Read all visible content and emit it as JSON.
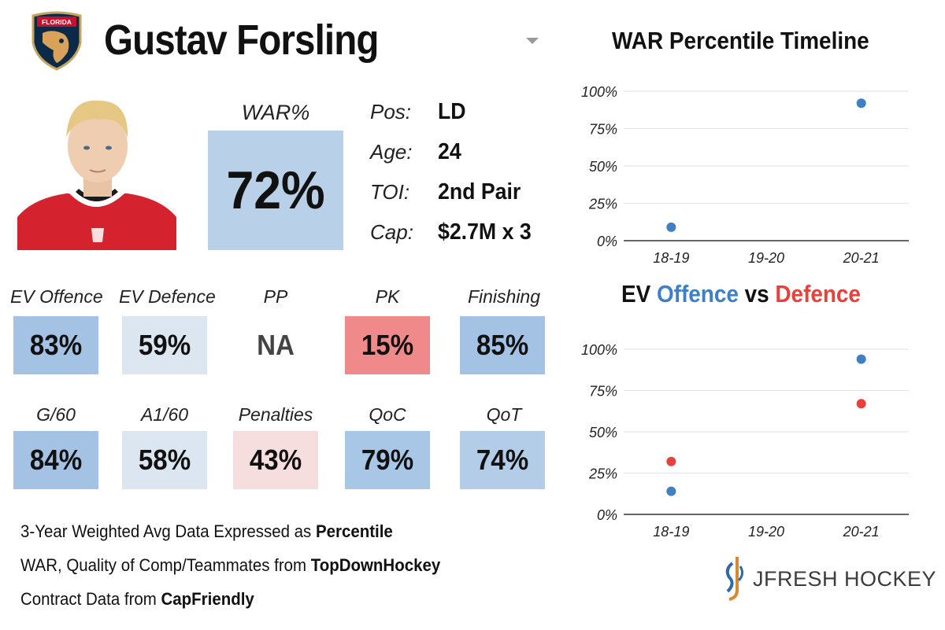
{
  "header": {
    "team_logo_text": "FLORIDA",
    "player_name": "Gustav Forsling"
  },
  "war": {
    "label": "WAR%",
    "value": "72%"
  },
  "info": [
    {
      "key": "Pos:",
      "value": "LD"
    },
    {
      "key": "Age:",
      "value": "24"
    },
    {
      "key": "TOI:",
      "value": "2nd Pair"
    },
    {
      "key": "Cap:",
      "value": "$2.7M x 3"
    }
  ],
  "stats": [
    {
      "label": "EV Offence",
      "value": "83%",
      "color": "#a3c2e4"
    },
    {
      "label": "EV Defence",
      "value": "59%",
      "color": "#dbe6f1"
    },
    {
      "label": "PP",
      "value": "NA",
      "color": "#ffffff"
    },
    {
      "label": "PK",
      "value": "15%",
      "color": "#f08a8a"
    },
    {
      "label": "Finishing",
      "value": "85%",
      "color": "#a3c2e4"
    },
    {
      "label": "G/60",
      "value": "84%",
      "color": "#a3c2e4"
    },
    {
      "label": "A1/60",
      "value": "58%",
      "color": "#dbe6f1"
    },
    {
      "label": "Penalties",
      "value": "43%",
      "color": "#f6dede"
    },
    {
      "label": "QoC",
      "value": "79%",
      "color": "#a8c6e6"
    },
    {
      "label": "QoT",
      "value": "74%",
      "color": "#b3cde8"
    }
  ],
  "footer": {
    "line1_prefix": "3-Year Weighted Avg Data Expressed as ",
    "line1_bold": "Percentile",
    "line2_prefix": "WAR, Quality of Comp/Teammates from ",
    "line2_bold": "TopDownHockey",
    "line3_prefix": "Contract Data from ",
    "line3_bold": "CapFriendly"
  },
  "brand": {
    "name": "JFRESH HOCKEY"
  },
  "colors": {
    "offence": "#3f7fc4",
    "defence": "#e8413b",
    "axis": "#333333",
    "grid": "#e2e2e2"
  },
  "chart_data": [
    {
      "type": "scatter",
      "title": "WAR Percentile Timeline",
      "categories": [
        "18-19",
        "19-20",
        "20-21"
      ],
      "ylim": [
        0,
        100
      ],
      "yticks": [
        0,
        25,
        50,
        75,
        100
      ],
      "ytick_labels": [
        "0%",
        "25%",
        "50%",
        "75%",
        "100%"
      ],
      "series": [
        {
          "name": "WAR",
          "color": "#3f7fc4",
          "values": [
            9,
            null,
            92
          ]
        }
      ]
    },
    {
      "type": "scatter",
      "title_parts": [
        "EV ",
        "Offence",
        " vs ",
        "Defence"
      ],
      "categories": [
        "18-19",
        "19-20",
        "20-21"
      ],
      "ylim": [
        0,
        100
      ],
      "yticks": [
        0,
        25,
        50,
        75,
        100
      ],
      "ytick_labels": [
        "0%",
        "25%",
        "50%",
        "75%",
        "100%"
      ],
      "series": [
        {
          "name": "Offence",
          "color": "#3f7fc4",
          "values": [
            14,
            null,
            94
          ]
        },
        {
          "name": "Defence",
          "color": "#e8413b",
          "values": [
            32,
            null,
            67
          ]
        }
      ]
    }
  ]
}
